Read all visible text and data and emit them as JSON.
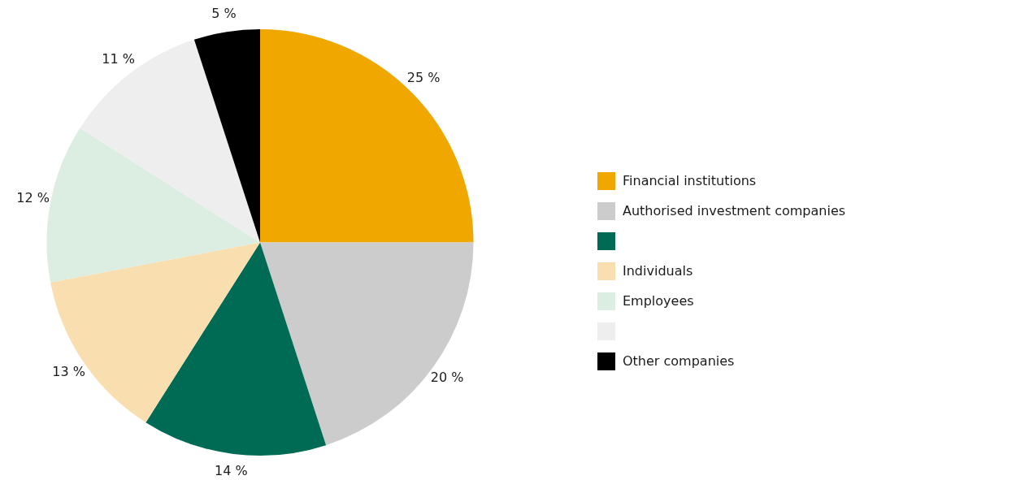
{
  "chart_data": {
    "type": "pie",
    "categories": [
      "Financial institutions",
      "Authorised investment companies",
      null,
      "Individuals",
      "Employees",
      null,
      "Other companies"
    ],
    "values": [
      25,
      20,
      14,
      13,
      12,
      11,
      5
    ],
    "colors": [
      "#f0a800",
      "#cccccc",
      "#006b55",
      "#f9deb0",
      "#dcede2",
      "#eeeeee",
      "#000000"
    ],
    "value_labels": [
      "25 %",
      "20 %",
      "14 %",
      "13 %",
      "12 %",
      "11 %",
      "5 %"
    ],
    "legend": "right"
  }
}
